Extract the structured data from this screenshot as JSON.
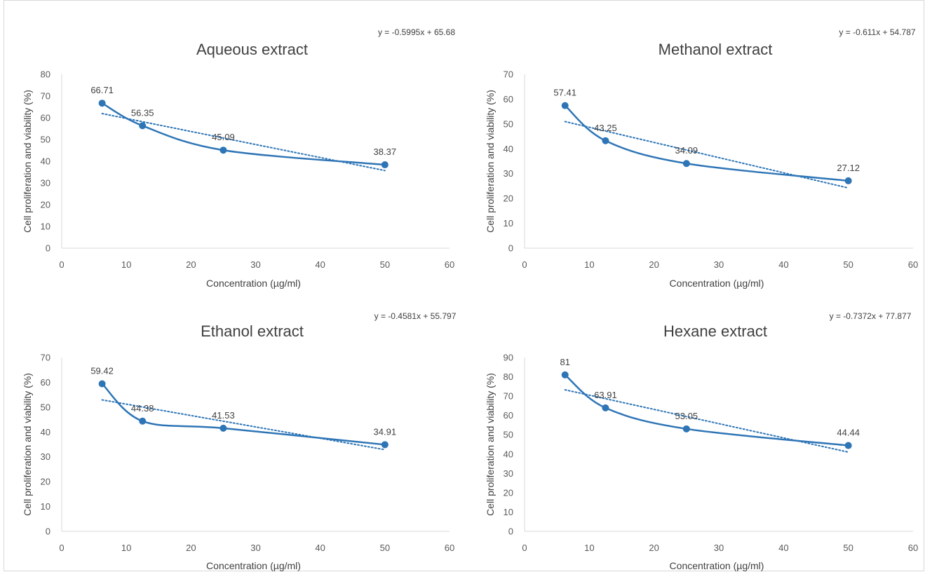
{
  "chart_data": [
    {
      "type": "scatter",
      "title": "Aqueous extract",
      "xlabel": "Concentration (µg/ml)",
      "ylabel": "Cell proliferation and viability (%)",
      "xlim": [
        0,
        60
      ],
      "ylim": [
        0,
        80
      ],
      "x_ticks": [
        0,
        10,
        20,
        30,
        40,
        50,
        60
      ],
      "y_ticks": [
        0,
        10,
        20,
        30,
        40,
        50,
        60,
        70,
        80
      ],
      "x": [
        6.25,
        12.5,
        25,
        50
      ],
      "values": [
        66.71,
        56.35,
        45.09,
        38.37
      ],
      "data_labels": [
        "66.71",
        "56.35",
        "45.09",
        "38.37"
      ],
      "trendline": {
        "type": "linear",
        "slope": -0.5995,
        "intercept": 65.68,
        "label": "y = -0.5995x + 65.68"
      },
      "grid": false,
      "series_color": "#2e75b6"
    },
    {
      "type": "scatter",
      "title": "Methanol extract",
      "xlabel": "Concentration (µg/ml)",
      "ylabel": "Cell proliferation and viability (%)",
      "xlim": [
        0,
        60
      ],
      "ylim": [
        0,
        70
      ],
      "x_ticks": [
        0,
        10,
        20,
        30,
        40,
        50,
        60
      ],
      "y_ticks": [
        0,
        10,
        20,
        30,
        40,
        50,
        60,
        70
      ],
      "x": [
        6.25,
        12.5,
        25,
        50
      ],
      "values": [
        57.41,
        43.25,
        34.09,
        27.12
      ],
      "data_labels": [
        "57.41",
        "43.25",
        "34.09",
        "27.12"
      ],
      "trendline": {
        "type": "linear",
        "slope": -0.611,
        "intercept": 54.787,
        "label": "y = -0.611x + 54.787"
      },
      "grid": false,
      "series_color": "#2e75b6"
    },
    {
      "type": "scatter",
      "title": "Ethanol extract",
      "xlabel": "Concentration (µg/ml)",
      "ylabel": "Cell proliferation and viability (%)",
      "xlim": [
        0,
        60
      ],
      "ylim": [
        0,
        70
      ],
      "x_ticks": [
        0,
        10,
        20,
        30,
        40,
        50,
        60
      ],
      "y_ticks": [
        0,
        10,
        20,
        30,
        40,
        50,
        60,
        70
      ],
      "x": [
        6.25,
        12.5,
        25,
        50
      ],
      "values": [
        59.42,
        44.38,
        41.53,
        34.91
      ],
      "data_labels": [
        "59.42",
        "44.38",
        "41.53",
        "34.91"
      ],
      "trendline": {
        "type": "linear",
        "slope": -0.4581,
        "intercept": 55.797,
        "label": "y = -0.4581x + 55.797"
      },
      "grid": false,
      "series_color": "#2e75b6"
    },
    {
      "type": "scatter",
      "title": "Hexane extract",
      "xlabel": "Concentration (µg/ml)",
      "ylabel": "Cell proliferation and viability (%)",
      "xlim": [
        0,
        60
      ],
      "ylim": [
        0,
        90
      ],
      "x_ticks": [
        0,
        10,
        20,
        30,
        40,
        50,
        60
      ],
      "y_ticks": [
        0,
        10,
        20,
        30,
        40,
        50,
        60,
        70,
        80,
        90
      ],
      "x": [
        6.25,
        12.5,
        25,
        50
      ],
      "values": [
        81,
        63.91,
        53.05,
        44.44
      ],
      "data_labels": [
        "81",
        "63.91",
        "53.05",
        "44.44"
      ],
      "trendline": {
        "type": "linear",
        "slope": -0.7372,
        "intercept": 77.877,
        "label": "y = -0.7372x + 77.877"
      },
      "grid": false,
      "series_color": "#2e75b6"
    }
  ]
}
